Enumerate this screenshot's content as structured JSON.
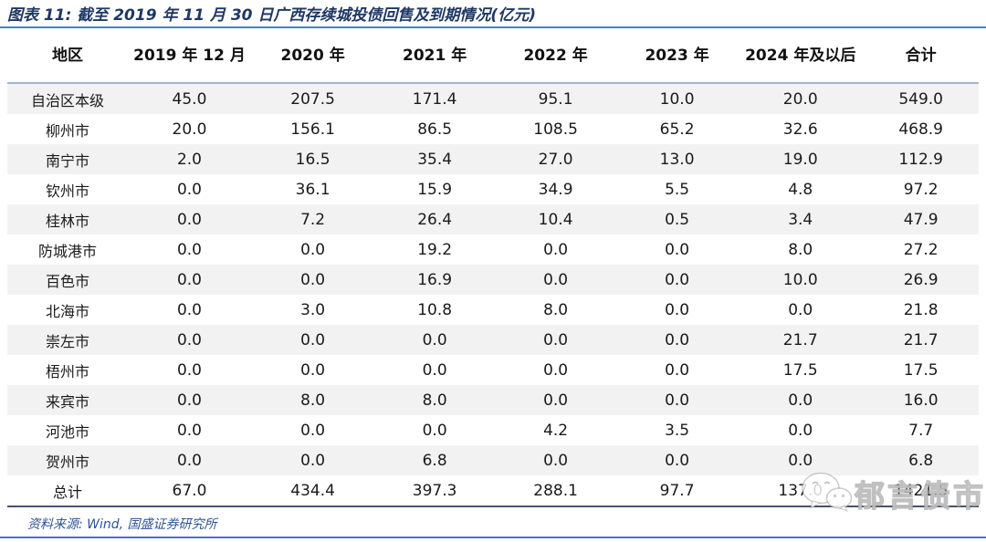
{
  "title": "图表 11: 截至 2019 年 11 月 30 日广西存续城投债回售及到期情况(亿元)",
  "table": {
    "columns": [
      "地区",
      "2019 年 12 月",
      "2020 年",
      "2021 年",
      "2022 年",
      "2023 年",
      "2024 年及以后",
      "合计"
    ],
    "rows": [
      {
        "region": "自治区本级",
        "values": [
          "45.0",
          "207.5",
          "171.4",
          "95.1",
          "10.0",
          "20.0",
          "549.0"
        ]
      },
      {
        "region": "柳州市",
        "values": [
          "20.0",
          "156.1",
          "86.5",
          "108.5",
          "65.2",
          "32.6",
          "468.9"
        ]
      },
      {
        "region": "南宁市",
        "values": [
          "2.0",
          "16.5",
          "35.4",
          "27.0",
          "13.0",
          "19.0",
          "112.9"
        ]
      },
      {
        "region": "钦州市",
        "values": [
          "0.0",
          "36.1",
          "15.9",
          "34.9",
          "5.5",
          "4.8",
          "97.2"
        ]
      },
      {
        "region": "桂林市",
        "values": [
          "0.0",
          "7.2",
          "26.4",
          "10.4",
          "0.5",
          "3.4",
          "47.9"
        ]
      },
      {
        "region": "防城港市",
        "values": [
          "0.0",
          "0.0",
          "19.2",
          "0.0",
          "0.0",
          "8.0",
          "27.2"
        ]
      },
      {
        "region": "百色市",
        "values": [
          "0.0",
          "0.0",
          "16.9",
          "0.0",
          "0.0",
          "10.0",
          "26.9"
        ]
      },
      {
        "region": "北海市",
        "values": [
          "0.0",
          "3.0",
          "10.8",
          "8.0",
          "0.0",
          "0.0",
          "21.8"
        ]
      },
      {
        "region": "崇左市",
        "values": [
          "0.0",
          "0.0",
          "0.0",
          "0.0",
          "0.0",
          "21.7",
          "21.7"
        ]
      },
      {
        "region": "梧州市",
        "values": [
          "0.0",
          "0.0",
          "0.0",
          "0.0",
          "0.0",
          "17.5",
          "17.5"
        ]
      },
      {
        "region": "来宾市",
        "values": [
          "0.0",
          "8.0",
          "8.0",
          "0.0",
          "0.0",
          "0.0",
          "16.0"
        ]
      },
      {
        "region": "河池市",
        "values": [
          "0.0",
          "0.0",
          "0.0",
          "4.2",
          "3.5",
          "0.0",
          "7.7"
        ]
      },
      {
        "region": "贺州市",
        "values": [
          "0.0",
          "0.0",
          "6.8",
          "0.0",
          "0.0",
          "0.0",
          "6.8"
        ]
      },
      {
        "region": "总计",
        "values": [
          "67.0",
          "434.4",
          "397.3",
          "288.1",
          "97.7",
          "137.0",
          "1421.5"
        ]
      }
    ],
    "column_widths_pct": [
      12.4,
      12.7,
      12.7,
      12.4,
      12.5,
      12.5,
      12.9,
      11.9
    ]
  },
  "source": "资料来源: Wind, 国盛证券研究所",
  "watermark": {
    "icon": "wechat-icon",
    "text": "郁言债市"
  },
  "colors": {
    "title_blue": "#1F3864",
    "top_rule_blue": "#4E7EC8",
    "header_divider_blue": "#9FB6D4",
    "row_stripe_gray": "#F2F2F2",
    "table_bottom_border": "#44546A",
    "source_blue": "#2E5496",
    "page_bottom_blue": "#4472C4"
  }
}
